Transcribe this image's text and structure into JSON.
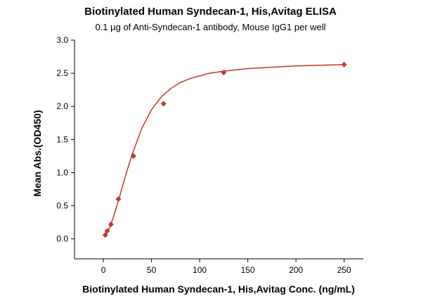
{
  "chart_data": {
    "type": "scatter",
    "title": "Biotinylated Human Syndecan-1, His,Avitag ELISA",
    "subtitle": "0.1 µg of Anti-Syndecan-1 antibody, Mouse IgG1 per well",
    "xlabel": "Biotinylated Human Syndecan-1, His,Avitag Conc. (ng/mL)",
    "ylabel": "Mean Abs.(OD450)",
    "xlim": [
      -30,
      270
    ],
    "ylim": [
      -0.3,
      3.0
    ],
    "x_ticks": [
      0,
      50,
      100,
      150,
      200,
      250
    ],
    "y_ticks": [
      0.0,
      0.5,
      1.0,
      1.5,
      2.0,
      2.5,
      3.0
    ],
    "grid": false,
    "series": [
      {
        "color": "#c0392b",
        "marker": "diamond",
        "x": [
          1.95,
          3.9,
          7.8,
          15.6,
          31.25,
          62.5,
          125,
          250
        ],
        "y": [
          0.06,
          0.12,
          0.22,
          0.6,
          1.25,
          2.04,
          2.51,
          2.63
        ]
      }
    ],
    "fit_curve": {
      "color": "#c0392b",
      "x": [
        1,
        5,
        10,
        15,
        20,
        25,
        30,
        40,
        50,
        60,
        70,
        80,
        90,
        100,
        110,
        125,
        150,
        175,
        200,
        225,
        250
      ],
      "y": [
        0.03,
        0.12,
        0.31,
        0.55,
        0.8,
        1.05,
        1.28,
        1.67,
        1.95,
        2.14,
        2.27,
        2.36,
        2.42,
        2.46,
        2.5,
        2.53,
        2.57,
        2.59,
        2.61,
        2.62,
        2.63
      ]
    }
  }
}
